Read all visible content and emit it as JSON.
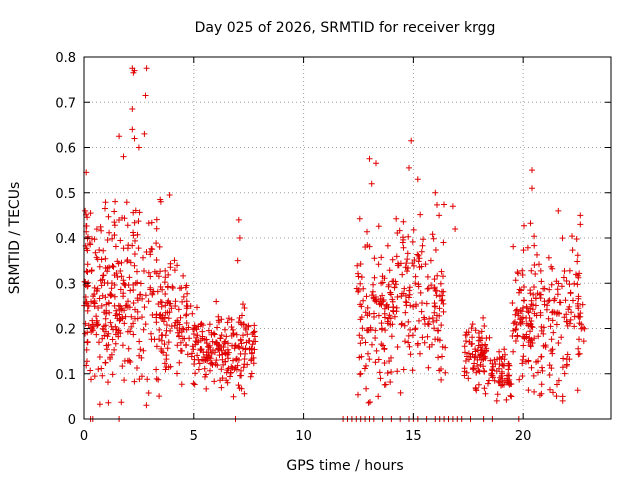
{
  "chart_data": {
    "type": "scatter",
    "title": "Day 025 of 2026, SRMTID for receiver krgg",
    "xlabel": "GPS time / hours",
    "ylabel": "SRMTID / TECUs",
    "xlim": [
      0,
      24
    ],
    "ylim": [
      0,
      0.8
    ],
    "xticks": [
      0,
      5,
      10,
      15,
      20
    ],
    "xtick_labels": [
      "0",
      "5",
      "10",
      "15",
      "20"
    ],
    "yticks": [
      0,
      0.1,
      0.2,
      0.3,
      0.4,
      0.5,
      0.6,
      0.7,
      0.8
    ],
    "ytick_labels": [
      "0",
      "0.1",
      "0.2",
      "0.3",
      "0.4",
      "0.5",
      "0.6",
      "0.7",
      "0.8"
    ],
    "grid": true,
    "marker": "+",
    "series": [
      {
        "name": "SRMTID",
        "color": "#e00000",
        "clusters": [
          {
            "x_range": [
              0.0,
              1.5
            ],
            "y_center": 0.26,
            "y_spread": 0.09,
            "count": 170
          },
          {
            "x_range": [
              1.5,
              3.5
            ],
            "y_center": 0.27,
            "y_spread": 0.1,
            "count": 160
          },
          {
            "x_range": [
              3.5,
              5.0
            ],
            "y_center": 0.21,
            "y_spread": 0.06,
            "count": 110
          },
          {
            "x_range": [
              5.0,
              7.8
            ],
            "y_center": 0.16,
            "y_spread": 0.04,
            "count": 210
          },
          {
            "x_range": [
              12.4,
              14.0
            ],
            "y_center": 0.22,
            "y_spread": 0.09,
            "count": 120
          },
          {
            "x_range": [
              14.0,
              16.5
            ],
            "y_center": 0.27,
            "y_spread": 0.08,
            "count": 170
          },
          {
            "x_range": [
              17.3,
              18.4
            ],
            "y_center": 0.15,
            "y_spread": 0.035,
            "count": 80
          },
          {
            "x_range": [
              18.4,
              19.5
            ],
            "y_center": 0.11,
            "y_spread": 0.03,
            "count": 60
          },
          {
            "x_range": [
              19.5,
              22.8
            ],
            "y_center": 0.23,
            "y_spread": 0.08,
            "count": 240
          }
        ],
        "highlights": [
          [
            2.2,
            0.775
          ],
          [
            2.25,
            0.765
          ],
          [
            2.3,
            0.77
          ],
          [
            2.85,
            0.775
          ],
          [
            2.8,
            0.715
          ],
          [
            2.2,
            0.685
          ],
          [
            2.2,
            0.64
          ],
          [
            2.3,
            0.62
          ],
          [
            1.6,
            0.625
          ],
          [
            2.75,
            0.63
          ],
          [
            2.5,
            0.6
          ],
          [
            1.8,
            0.58
          ],
          [
            0.1,
            0.545
          ],
          [
            3.5,
            0.48
          ],
          [
            3.9,
            0.495
          ],
          [
            0.05,
            0.46
          ],
          [
            0.3,
            0.455
          ],
          [
            13.0,
            0.575
          ],
          [
            13.3,
            0.565
          ],
          [
            14.9,
            0.615
          ],
          [
            14.8,
            0.555
          ],
          [
            15.2,
            0.53
          ],
          [
            13.1,
            0.52
          ],
          [
            20.4,
            0.55
          ],
          [
            20.4,
            0.51
          ],
          [
            16.0,
            0.5
          ],
          [
            16.8,
            0.47
          ],
          [
            16.9,
            0.42
          ],
          [
            21.6,
            0.46
          ],
          [
            22.6,
            0.45
          ],
          [
            22.6,
            0.43
          ],
          [
            7.05,
            0.44
          ],
          [
            7.1,
            0.4
          ],
          [
            7.0,
            0.35
          ],
          [
            15.8,
            0.35
          ],
          [
            20.5,
            0.06
          ],
          [
            21.8,
            0.05
          ],
          [
            21.8,
            0.04
          ],
          [
            18.8,
            0.04
          ],
          [
            13.4,
            0.05
          ]
        ],
        "zero_points": [
          0.3,
          0.4,
          1.6,
          6.9,
          11.8,
          12.0,
          12.2,
          12.4,
          12.6,
          12.8,
          13.0,
          13.2,
          13.6,
          14.0,
          14.4,
          14.8,
          15.0,
          15.2,
          15.6,
          16.0,
          16.2,
          16.4,
          16.6,
          16.8,
          17.0,
          17.2,
          17.6,
          18.2,
          18.6,
          19.8
        ]
      }
    ]
  }
}
